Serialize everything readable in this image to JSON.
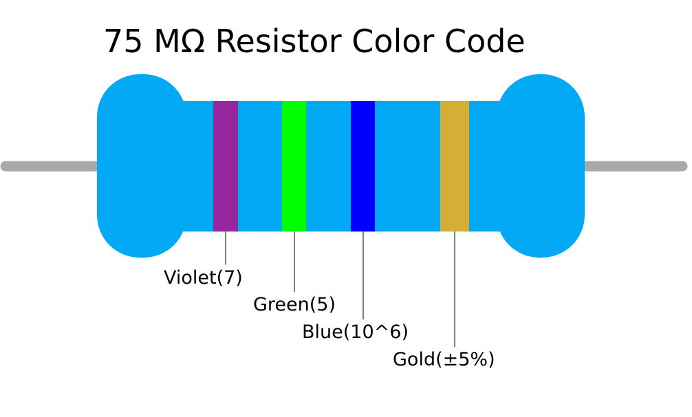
{
  "title": "75 MΩ Resistor Color Code",
  "colors": {
    "body": "#03A9F4",
    "lead": "#A9A9AC",
    "leader_line": "#000000"
  },
  "bands": [
    {
      "name": "violet",
      "label": "Violet(7)",
      "color": "#96279E"
    },
    {
      "name": "green",
      "label": "Green(5)",
      "color": "#00FF00"
    },
    {
      "name": "blue",
      "label": "Blue(10^6)",
      "color": "#0000FF"
    },
    {
      "name": "gold",
      "label": "Gold(±5%)",
      "color": "#D4AF37"
    }
  ]
}
